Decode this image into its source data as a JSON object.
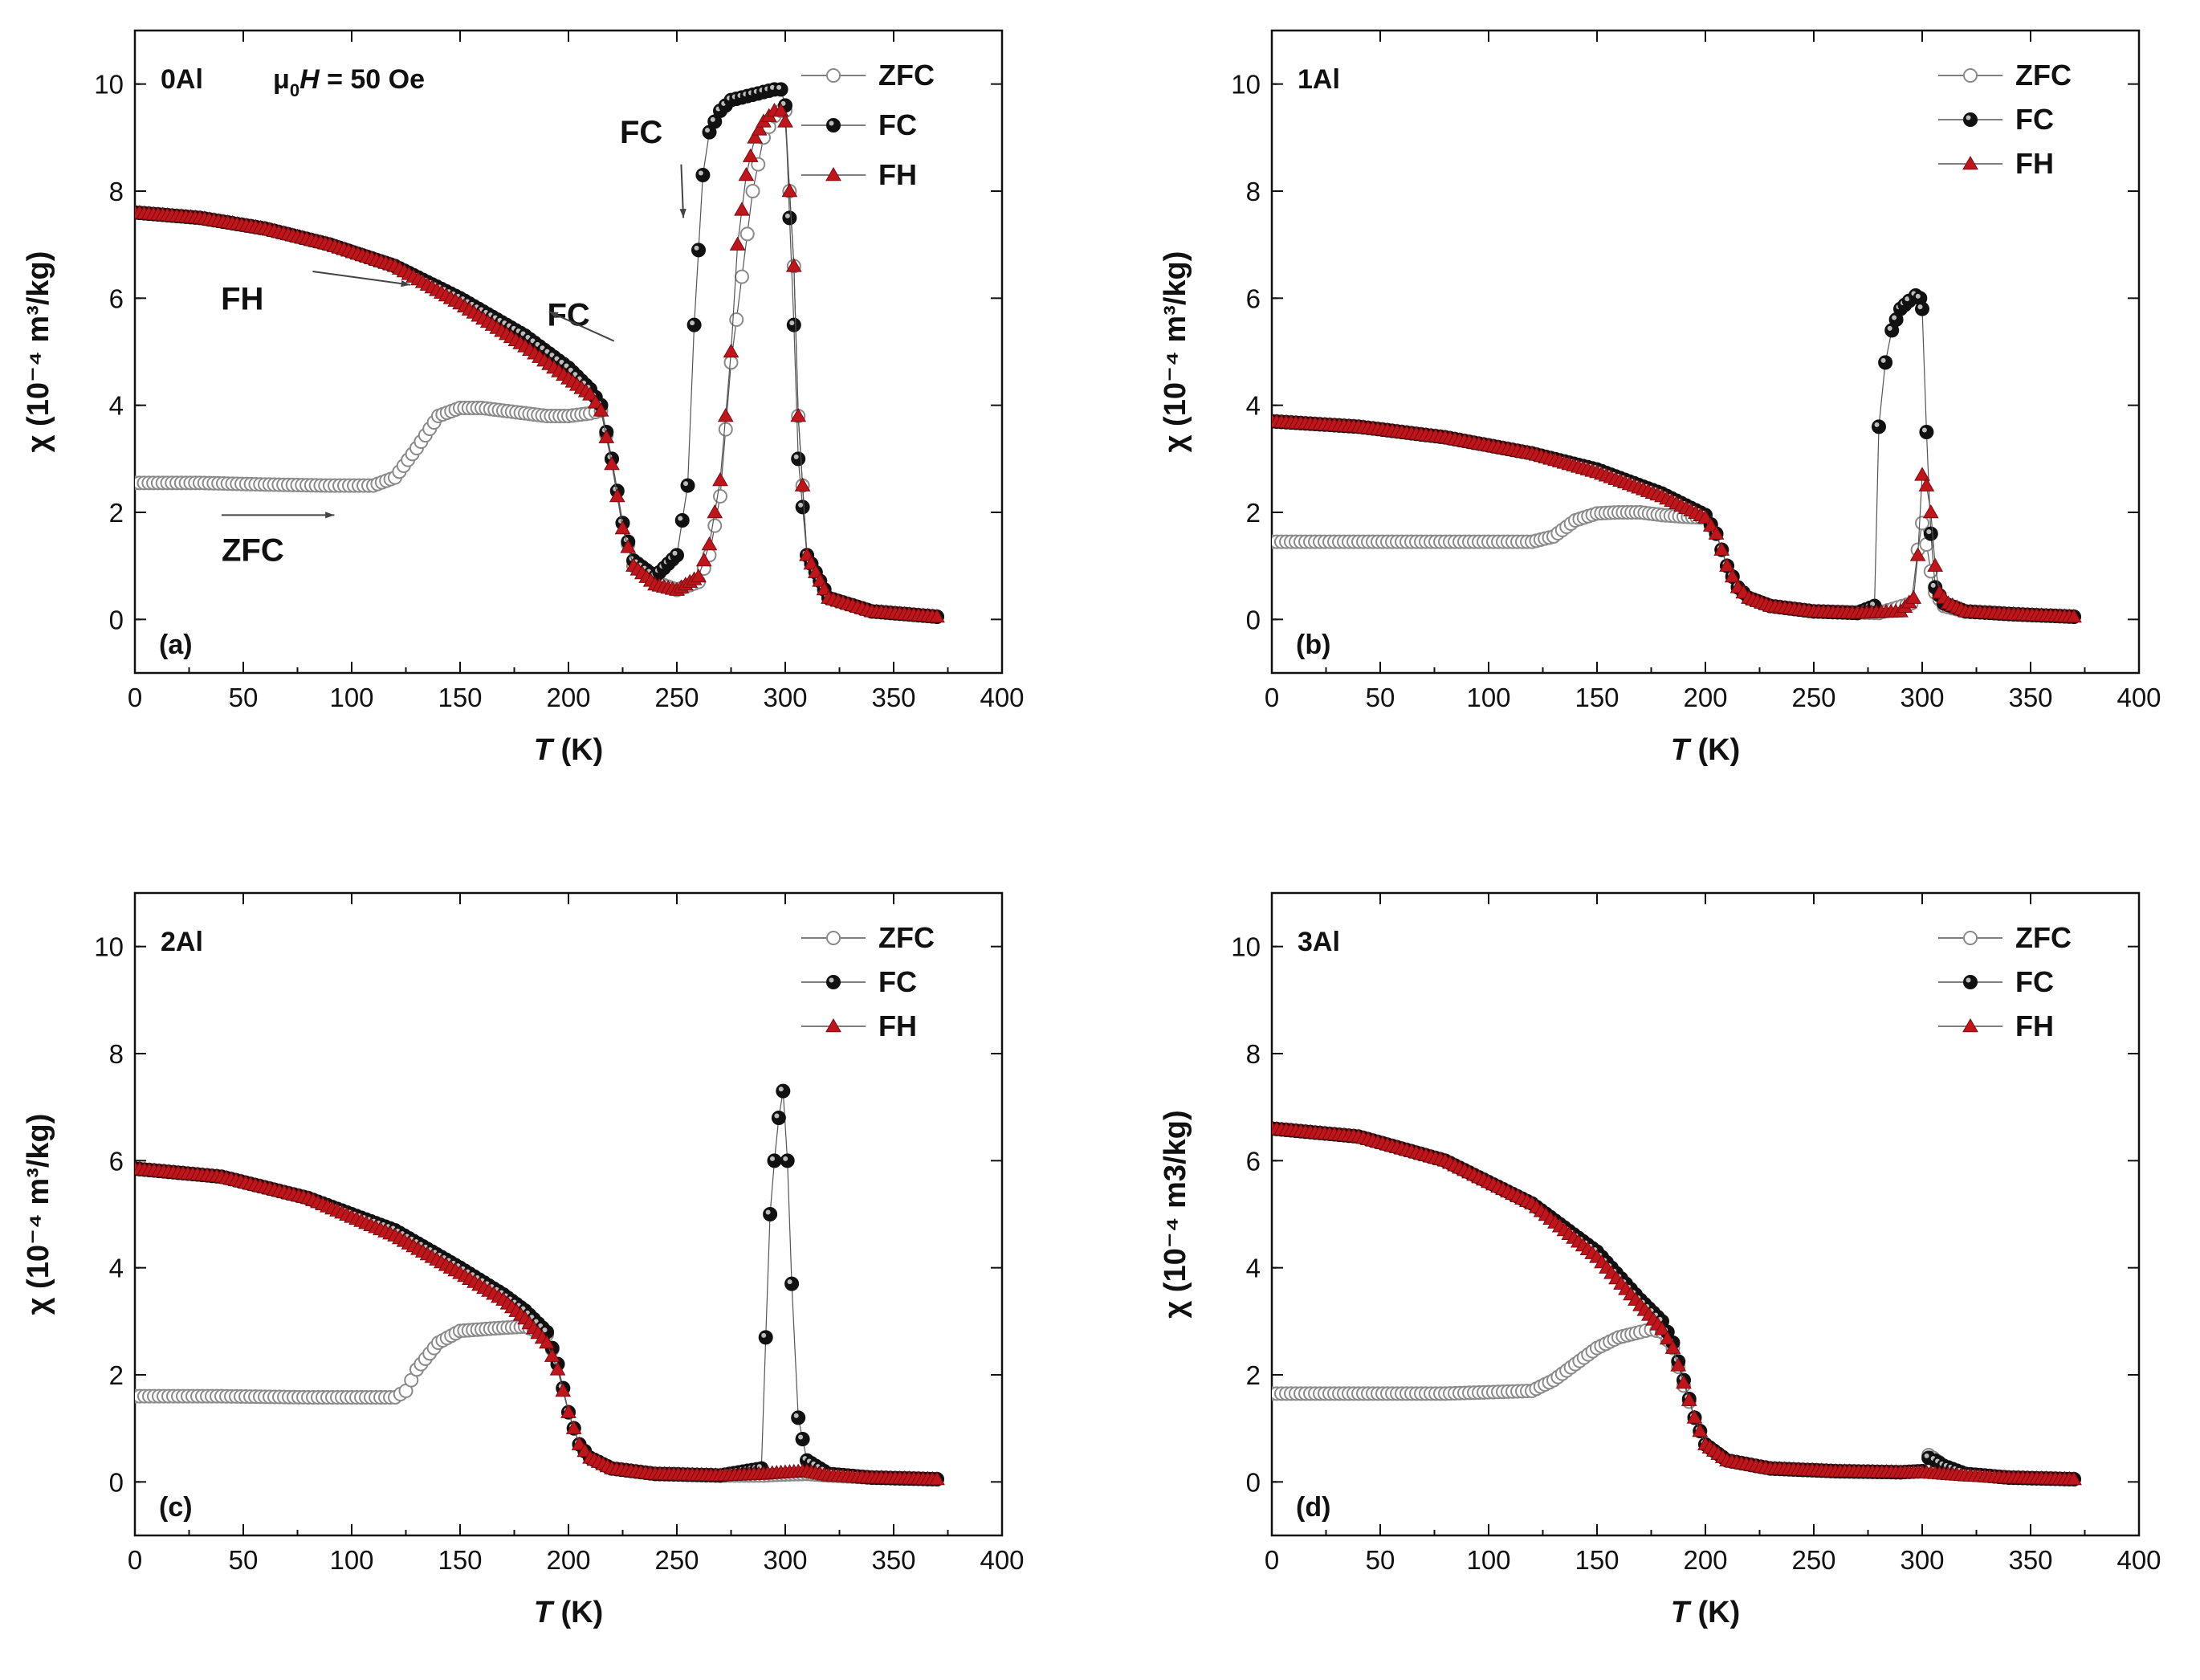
{
  "figure": {
    "field_label_prefix": "μ",
    "field_label_sub": "0",
    "field_label_var": "H",
    "field_label_rest": " = 50 Oe"
  },
  "legend_labels": [
    "ZFC",
    "FC",
    "FH"
  ],
  "colors": {
    "zfc": "#8a8a8a",
    "fc": "#111111",
    "fh": "#c0161b",
    "axis": "#111111"
  },
  "chart_data": [
    {
      "type": "scatter",
      "panel": "(a)",
      "sample": "0Al",
      "xlabel_var": "T",
      "xlabel_unit": " (K)",
      "ylabel": "χ (10⁻⁴ m³/kg)",
      "xlim": [
        0,
        400
      ],
      "ylim": [
        -1,
        11
      ],
      "xticks": [
        0,
        50,
        100,
        150,
        200,
        250,
        300,
        350,
        400
      ],
      "yticks": [
        0,
        2,
        4,
        6,
        8,
        10
      ],
      "annotations": [
        "FH",
        "FC",
        "FC",
        "ZFC"
      ],
      "series": [
        {
          "name": "ZFC",
          "x": [
            0,
            30,
            60,
            90,
            110,
            120,
            130,
            140,
            150,
            160,
            170,
            180,
            190,
            200,
            210,
            215,
            220,
            225,
            230,
            240,
            250,
            260,
            265,
            270,
            275,
            280,
            285,
            290,
            295,
            298,
            300,
            302,
            304,
            306,
            310,
            320,
            340,
            370
          ],
          "y": [
            2.55,
            2.55,
            2.52,
            2.5,
            2.5,
            2.65,
            3.2,
            3.8,
            3.95,
            3.95,
            3.9,
            3.85,
            3.8,
            3.8,
            3.85,
            3.9,
            3.0,
            1.8,
            1.0,
            0.7,
            0.55,
            0.7,
            1.2,
            2.3,
            4.8,
            6.4,
            8.0,
            9.0,
            9.4,
            9.5,
            9.5,
            8.0,
            6.6,
            3.8,
            1.2,
            0.4,
            0.15,
            0.05
          ]
        },
        {
          "name": "FC",
          "x": [
            0,
            30,
            60,
            90,
            120,
            150,
            180,
            200,
            210,
            215,
            220,
            225,
            230,
            240,
            250,
            255,
            258,
            262,
            265,
            270,
            275,
            280,
            285,
            290,
            295,
            298,
            300,
            302,
            304,
            306,
            310,
            320,
            340,
            370
          ],
          "y": [
            7.6,
            7.5,
            7.3,
            7.0,
            6.6,
            6.0,
            5.3,
            4.7,
            4.3,
            4.0,
            3.0,
            1.8,
            1.1,
            0.8,
            1.2,
            2.5,
            5.5,
            8.3,
            9.1,
            9.5,
            9.7,
            9.75,
            9.8,
            9.85,
            9.9,
            9.9,
            9.6,
            7.5,
            5.5,
            3.0,
            1.2,
            0.4,
            0.15,
            0.05
          ]
        },
        {
          "name": "FH",
          "x": [
            0,
            30,
            60,
            90,
            120,
            150,
            180,
            200,
            210,
            215,
            220,
            225,
            230,
            240,
            250,
            260,
            265,
            270,
            275,
            278,
            282,
            286,
            290,
            295,
            298,
            300,
            302,
            304,
            306,
            310,
            320,
            340,
            370
          ],
          "y": [
            7.6,
            7.5,
            7.3,
            7.0,
            6.6,
            5.9,
            5.1,
            4.5,
            4.2,
            3.9,
            2.9,
            1.7,
            1.0,
            0.65,
            0.55,
            0.8,
            1.4,
            2.6,
            5.0,
            7.0,
            8.3,
            9.0,
            9.3,
            9.5,
            9.5,
            9.3,
            8.0,
            6.6,
            3.8,
            1.2,
            0.4,
            0.15,
            0.05
          ]
        }
      ]
    },
    {
      "type": "scatter",
      "panel": "(b)",
      "sample": "1Al",
      "xlabel_var": "T",
      "xlabel_unit": " (K)",
      "ylabel": "χ (10⁻⁴ m³/kg)",
      "xlim": [
        0,
        400
      ],
      "ylim": [
        -1,
        11
      ],
      "xticks": [
        0,
        50,
        100,
        150,
        200,
        250,
        300,
        350,
        400
      ],
      "yticks": [
        0,
        2,
        4,
        6,
        8,
        10
      ],
      "series": [
        {
          "name": "ZFC",
          "x": [
            0,
            40,
            80,
            120,
            130,
            140,
            150,
            160,
            170,
            180,
            190,
            200,
            205,
            210,
            215,
            220,
            230,
            250,
            280,
            295,
            298,
            300,
            302,
            304,
            306,
            310,
            320,
            340,
            370
          ],
          "y": [
            1.45,
            1.45,
            1.45,
            1.45,
            1.55,
            1.85,
            1.98,
            2.0,
            2.0,
            1.95,
            1.92,
            1.9,
            1.6,
            1.0,
            0.6,
            0.4,
            0.25,
            0.15,
            0.12,
            0.3,
            1.3,
            1.8,
            1.4,
            0.9,
            0.5,
            0.25,
            0.15,
            0.1,
            0.05
          ]
        },
        {
          "name": "FC",
          "x": [
            0,
            40,
            80,
            120,
            150,
            180,
            200,
            205,
            210,
            215,
            220,
            230,
            250,
            270,
            278,
            280,
            283,
            286,
            290,
            294,
            297,
            299,
            300,
            302,
            304,
            306,
            310,
            320,
            340,
            370
          ],
          "y": [
            3.7,
            3.6,
            3.4,
            3.1,
            2.8,
            2.35,
            1.95,
            1.6,
            1.0,
            0.6,
            0.4,
            0.25,
            0.15,
            0.12,
            0.25,
            3.6,
            4.8,
            5.4,
            5.8,
            5.95,
            6.05,
            6.0,
            5.8,
            3.5,
            1.6,
            0.6,
            0.3,
            0.15,
            0.1,
            0.05
          ]
        },
        {
          "name": "FH",
          "x": [
            0,
            40,
            80,
            120,
            150,
            180,
            200,
            205,
            210,
            215,
            220,
            230,
            250,
            270,
            290,
            296,
            298,
            300,
            302,
            304,
            306,
            308,
            312,
            320,
            340,
            370
          ],
          "y": [
            3.7,
            3.6,
            3.4,
            3.1,
            2.75,
            2.3,
            1.9,
            1.6,
            1.0,
            0.6,
            0.4,
            0.25,
            0.15,
            0.12,
            0.15,
            0.4,
            1.2,
            2.7,
            2.5,
            2.0,
            1.0,
            0.5,
            0.3,
            0.15,
            0.1,
            0.05
          ]
        }
      ]
    },
    {
      "type": "scatter",
      "panel": "(c)",
      "sample": "2Al",
      "xlabel_var": "T",
      "xlabel_unit": " (K)",
      "ylabel": "χ (10⁻⁴ m³/kg)",
      "xlim": [
        0,
        400
      ],
      "ylim": [
        -1,
        11
      ],
      "xticks": [
        0,
        50,
        100,
        150,
        200,
        250,
        300,
        350,
        400
      ],
      "yticks": [
        0,
        2,
        4,
        6,
        8,
        10
      ],
      "series": [
        {
          "name": "ZFC",
          "x": [
            0,
            40,
            80,
            120,
            125,
            130,
            140,
            150,
            160,
            170,
            180,
            190,
            195,
            200,
            205,
            210,
            220,
            240,
            270,
            290,
            300,
            310,
            320,
            340,
            370
          ],
          "y": [
            1.6,
            1.6,
            1.58,
            1.58,
            1.7,
            2.1,
            2.6,
            2.82,
            2.85,
            2.88,
            2.9,
            2.75,
            2.2,
            1.3,
            0.7,
            0.45,
            0.25,
            0.15,
            0.12,
            0.12,
            0.14,
            0.15,
            0.12,
            0.08,
            0.05
          ]
        },
        {
          "name": "FC",
          "x": [
            0,
            40,
            80,
            120,
            150,
            170,
            180,
            190,
            195,
            200,
            205,
            210,
            220,
            240,
            270,
            289,
            291,
            293,
            295,
            297,
            299,
            301,
            303,
            306,
            310,
            320,
            340,
            370
          ],
          "y": [
            5.85,
            5.7,
            5.3,
            4.7,
            4.0,
            3.5,
            3.2,
            2.8,
            2.2,
            1.3,
            0.7,
            0.45,
            0.25,
            0.15,
            0.12,
            0.25,
            2.7,
            5.0,
            6.0,
            6.8,
            7.3,
            6.0,
            3.7,
            1.2,
            0.4,
            0.15,
            0.08,
            0.05
          ]
        },
        {
          "name": "FH",
          "x": [
            0,
            40,
            80,
            120,
            150,
            170,
            180,
            190,
            195,
            200,
            205,
            210,
            220,
            240,
            270,
            290,
            300,
            310,
            320,
            340,
            370
          ],
          "y": [
            5.85,
            5.7,
            5.3,
            4.6,
            3.9,
            3.4,
            3.05,
            2.6,
            2.1,
            1.3,
            0.7,
            0.45,
            0.25,
            0.15,
            0.12,
            0.15,
            0.18,
            0.2,
            0.12,
            0.08,
            0.05
          ]
        }
      ]
    },
    {
      "type": "scatter",
      "panel": "(d)",
      "sample": "3Al",
      "xlabel_var": "T",
      "xlabel_unit": " (K)",
      "ylabel": "χ (10⁻⁴ m3/kg)",
      "xlim": [
        0,
        400
      ],
      "ylim": [
        -1,
        11
      ],
      "xticks": [
        0,
        50,
        100,
        150,
        200,
        250,
        300,
        350,
        400
      ],
      "yticks": [
        0,
        2,
        4,
        6,
        8,
        10
      ],
      "series": [
        {
          "name": "ZFC",
          "x": [
            0,
            40,
            80,
            120,
            130,
            140,
            150,
            160,
            170,
            175,
            180,
            185,
            190,
            195,
            200,
            210,
            230,
            260,
            290,
            300,
            303,
            305,
            310,
            320,
            340,
            370
          ],
          "y": [
            1.65,
            1.65,
            1.65,
            1.7,
            1.9,
            2.2,
            2.5,
            2.7,
            2.8,
            2.85,
            2.8,
            2.5,
            1.8,
            1.2,
            0.7,
            0.4,
            0.25,
            0.2,
            0.18,
            0.2,
            0.5,
            0.45,
            0.3,
            0.15,
            0.08,
            0.05
          ]
        },
        {
          "name": "FC",
          "x": [
            0,
            40,
            80,
            120,
            150,
            170,
            180,
            185,
            190,
            195,
            200,
            210,
            230,
            260,
            290,
            300,
            303,
            306,
            310,
            320,
            340,
            370
          ],
          "y": [
            6.6,
            6.45,
            6.0,
            5.2,
            4.3,
            3.4,
            3.0,
            2.6,
            1.9,
            1.2,
            0.7,
            0.4,
            0.25,
            0.2,
            0.18,
            0.2,
            0.45,
            0.4,
            0.3,
            0.15,
            0.08,
            0.05
          ]
        },
        {
          "name": "FH",
          "x": [
            0,
            40,
            80,
            120,
            150,
            170,
            180,
            185,
            190,
            195,
            200,
            210,
            230,
            260,
            290,
            300,
            310,
            320,
            340,
            370
          ],
          "y": [
            6.6,
            6.45,
            6.0,
            5.2,
            4.2,
            3.3,
            2.85,
            2.5,
            1.85,
            1.2,
            0.7,
            0.4,
            0.25,
            0.2,
            0.18,
            0.18,
            0.15,
            0.12,
            0.08,
            0.05
          ]
        }
      ]
    }
  ]
}
